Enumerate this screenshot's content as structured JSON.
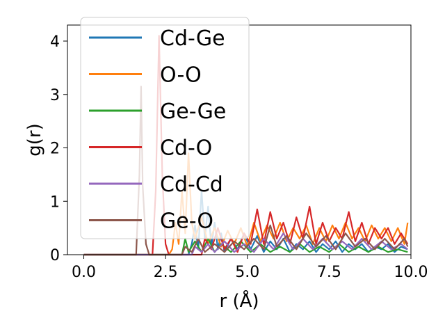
{
  "chart_data": {
    "type": "line",
    "xlabel": "r (Å)",
    "ylabel": "g(r)",
    "xlim": [
      -0.5,
      10.0
    ],
    "ylim": [
      0,
      4.3
    ],
    "xticks": [
      0.0,
      2.5,
      5.0,
      7.5,
      10.0
    ],
    "xtick_labels": [
      "0.0",
      "2.5",
      "5.0",
      "7.5",
      "10.0"
    ],
    "yticks": [
      0,
      1,
      2,
      3,
      4
    ],
    "ytick_labels": [
      "0",
      "1",
      "2",
      "3",
      "4"
    ],
    "grid": false,
    "legend_position": "upper-left",
    "series": [
      {
        "name": "Cd-Ge",
        "color": "#1f77b4",
        "points": [
          [
            0,
            0
          ],
          [
            3.2,
            0
          ],
          [
            3.3,
            0.2
          ],
          [
            3.4,
            0.55
          ],
          [
            3.5,
            0.1
          ],
          [
            3.6,
            1.2
          ],
          [
            3.7,
            0.3
          ],
          [
            3.8,
            0.9
          ],
          [
            3.9,
            0.15
          ],
          [
            4.0,
            0.6
          ],
          [
            4.1,
            0.1
          ],
          [
            4.2,
            0.4
          ],
          [
            4.3,
            0.05
          ],
          [
            4.5,
            0.3
          ],
          [
            4.7,
            0.1
          ],
          [
            4.9,
            0.4
          ],
          [
            5.1,
            0.1
          ],
          [
            5.3,
            0.35
          ],
          [
            5.5,
            0.05
          ],
          [
            5.7,
            0.25
          ],
          [
            5.9,
            0.1
          ],
          [
            6.1,
            0.3
          ],
          [
            6.3,
            0.05
          ],
          [
            6.5,
            0.2
          ],
          [
            6.7,
            0.1
          ],
          [
            6.9,
            0.25
          ],
          [
            7.1,
            0.05
          ],
          [
            7.3,
            0.2
          ],
          [
            7.5,
            0.1
          ],
          [
            7.7,
            0.25
          ],
          [
            7.9,
            0.05
          ],
          [
            8.1,
            0.2
          ],
          [
            8.3,
            0.1
          ],
          [
            8.5,
            0.2
          ],
          [
            8.7,
            0.05
          ],
          [
            8.9,
            0.15
          ],
          [
            9.1,
            0.1
          ],
          [
            9.3,
            0.2
          ],
          [
            9.5,
            0.05
          ],
          [
            9.7,
            0.15
          ],
          [
            9.9,
            0.1
          ]
        ]
      },
      {
        "name": "O-O",
        "color": "#ff7f0e",
        "points": [
          [
            0,
            0
          ],
          [
            2.6,
            0
          ],
          [
            2.7,
            0.1
          ],
          [
            2.8,
            0.6
          ],
          [
            2.9,
            0.2
          ],
          [
            3.0,
            1.2
          ],
          [
            3.1,
            0.4
          ],
          [
            3.2,
            1.9
          ],
          [
            3.3,
            0.6
          ],
          [
            3.4,
            0.3
          ],
          [
            3.6,
            0.7
          ],
          [
            3.8,
            0.2
          ],
          [
            4.0,
            0.5
          ],
          [
            4.2,
            0.15
          ],
          [
            4.4,
            0.45
          ],
          [
            4.6,
            0.2
          ],
          [
            4.8,
            0.5
          ],
          [
            5.0,
            0.15
          ],
          [
            5.2,
            0.6
          ],
          [
            5.4,
            0.25
          ],
          [
            5.6,
            0.55
          ],
          [
            5.8,
            0.3
          ],
          [
            6.0,
            0.6
          ],
          [
            6.2,
            0.25
          ],
          [
            6.4,
            0.5
          ],
          [
            6.6,
            0.3
          ],
          [
            6.8,
            0.55
          ],
          [
            7.0,
            0.2
          ],
          [
            7.2,
            0.5
          ],
          [
            7.4,
            0.25
          ],
          [
            7.6,
            0.55
          ],
          [
            7.8,
            0.3
          ],
          [
            8.0,
            0.6
          ],
          [
            8.2,
            0.3
          ],
          [
            8.4,
            0.5
          ],
          [
            8.6,
            0.25
          ],
          [
            8.8,
            0.55
          ],
          [
            9.0,
            0.3
          ],
          [
            9.2,
            0.5
          ],
          [
            9.4,
            0.25
          ],
          [
            9.6,
            0.5
          ],
          [
            9.8,
            0.2
          ],
          [
            9.9,
            0.6
          ]
        ]
      },
      {
        "name": "Ge-Ge",
        "color": "#2ca02c",
        "points": [
          [
            0,
            0
          ],
          [
            3.0,
            0
          ],
          [
            3.1,
            0.3
          ],
          [
            3.2,
            0.05
          ],
          [
            3.4,
            0.25
          ],
          [
            3.6,
            0.05
          ],
          [
            3.8,
            0.3
          ],
          [
            4.0,
            0.05
          ],
          [
            4.2,
            0.2
          ],
          [
            4.5,
            0.05
          ],
          [
            4.8,
            0.25
          ],
          [
            5.1,
            0.05
          ],
          [
            5.4,
            0.2
          ],
          [
            5.7,
            0.05
          ],
          [
            6.0,
            0.15
          ],
          [
            6.3,
            0.05
          ],
          [
            6.6,
            0.2
          ],
          [
            6.9,
            0.05
          ],
          [
            7.2,
            0.15
          ],
          [
            7.5,
            0.05
          ],
          [
            7.8,
            0.2
          ],
          [
            8.1,
            0.05
          ],
          [
            8.4,
            0.15
          ],
          [
            8.7,
            0.05
          ],
          [
            9.0,
            0.15
          ],
          [
            9.3,
            0.05
          ],
          [
            9.6,
            0.1
          ],
          [
            9.9,
            0.05
          ]
        ]
      },
      {
        "name": "Cd-O",
        "color": "#d62728",
        "points": [
          [
            0,
            0
          ],
          [
            2.1,
            0
          ],
          [
            2.2,
            1.2
          ],
          [
            2.3,
            4.1
          ],
          [
            2.4,
            1.5
          ],
          [
            2.5,
            0.2
          ],
          [
            2.6,
            0
          ],
          [
            3.6,
            0
          ],
          [
            3.7,
            0.3
          ],
          [
            3.9,
            0.1
          ],
          [
            4.1,
            0.5
          ],
          [
            4.3,
            0.1
          ],
          [
            4.5,
            0.3
          ],
          [
            4.7,
            0.05
          ],
          [
            4.9,
            0.4
          ],
          [
            5.1,
            0.2
          ],
          [
            5.3,
            0.85
          ],
          [
            5.5,
            0.2
          ],
          [
            5.7,
            0.8
          ],
          [
            5.9,
            0.3
          ],
          [
            6.1,
            0.6
          ],
          [
            6.3,
            0.2
          ],
          [
            6.5,
            0.7
          ],
          [
            6.7,
            0.3
          ],
          [
            6.9,
            0.9
          ],
          [
            7.1,
            0.2
          ],
          [
            7.3,
            0.6
          ],
          [
            7.5,
            0.25
          ],
          [
            7.7,
            0.5
          ],
          [
            7.9,
            0.3
          ],
          [
            8.1,
            0.8
          ],
          [
            8.3,
            0.25
          ],
          [
            8.5,
            0.6
          ],
          [
            8.7,
            0.2
          ],
          [
            8.9,
            0.5
          ],
          [
            9.1,
            0.3
          ],
          [
            9.3,
            0.5
          ],
          [
            9.5,
            0.2
          ],
          [
            9.7,
            0.4
          ],
          [
            9.9,
            0.2
          ]
        ]
      },
      {
        "name": "Cd-Cd",
        "color": "#9467bd",
        "points": [
          [
            0,
            0
          ],
          [
            3.3,
            0
          ],
          [
            3.4,
            0.15
          ],
          [
            3.6,
            0.05
          ],
          [
            3.8,
            0.2
          ],
          [
            4.0,
            0.05
          ],
          [
            4.3,
            0.25
          ],
          [
            4.6,
            0.05
          ],
          [
            4.9,
            0.2
          ],
          [
            5.2,
            0.05
          ],
          [
            5.5,
            0.3
          ],
          [
            5.8,
            0.1
          ],
          [
            6.1,
            0.4
          ],
          [
            6.4,
            0.1
          ],
          [
            6.7,
            0.3
          ],
          [
            7.0,
            0.1
          ],
          [
            7.3,
            0.3
          ],
          [
            7.6,
            0.1
          ],
          [
            7.9,
            0.25
          ],
          [
            8.2,
            0.1
          ],
          [
            8.5,
            0.3
          ],
          [
            8.8,
            0.1
          ],
          [
            9.1,
            0.25
          ],
          [
            9.4,
            0.1
          ],
          [
            9.7,
            0.2
          ],
          [
            9.9,
            0.1
          ]
        ]
      },
      {
        "name": "Ge-O",
        "color": "#8c564b",
        "points": [
          [
            0,
            0
          ],
          [
            1.6,
            0
          ],
          [
            1.7,
            1.5
          ],
          [
            1.75,
            3.15
          ],
          [
            1.8,
            1.3
          ],
          [
            1.9,
            0.2
          ],
          [
            2.0,
            0
          ],
          [
            3.0,
            0
          ],
          [
            3.1,
            0.15
          ],
          [
            3.3,
            0.05
          ],
          [
            3.5,
            0.3
          ],
          [
            3.7,
            0.05
          ],
          [
            4.0,
            0.2
          ],
          [
            4.3,
            0.05
          ],
          [
            4.6,
            0.25
          ],
          [
            4.9,
            0.1
          ],
          [
            5.2,
            0.3
          ],
          [
            5.5,
            0.1
          ],
          [
            5.7,
            0.55
          ],
          [
            5.9,
            0.15
          ],
          [
            6.2,
            0.35
          ],
          [
            6.5,
            0.1
          ],
          [
            6.8,
            0.4
          ],
          [
            7.1,
            0.15
          ],
          [
            7.4,
            0.35
          ],
          [
            7.7,
            0.1
          ],
          [
            8.0,
            0.4
          ],
          [
            8.3,
            0.15
          ],
          [
            8.6,
            0.3
          ],
          [
            8.9,
            0.1
          ],
          [
            9.2,
            0.3
          ],
          [
            9.5,
            0.1
          ],
          [
            9.8,
            0.3
          ],
          [
            9.9,
            0.15
          ]
        ]
      }
    ]
  }
}
